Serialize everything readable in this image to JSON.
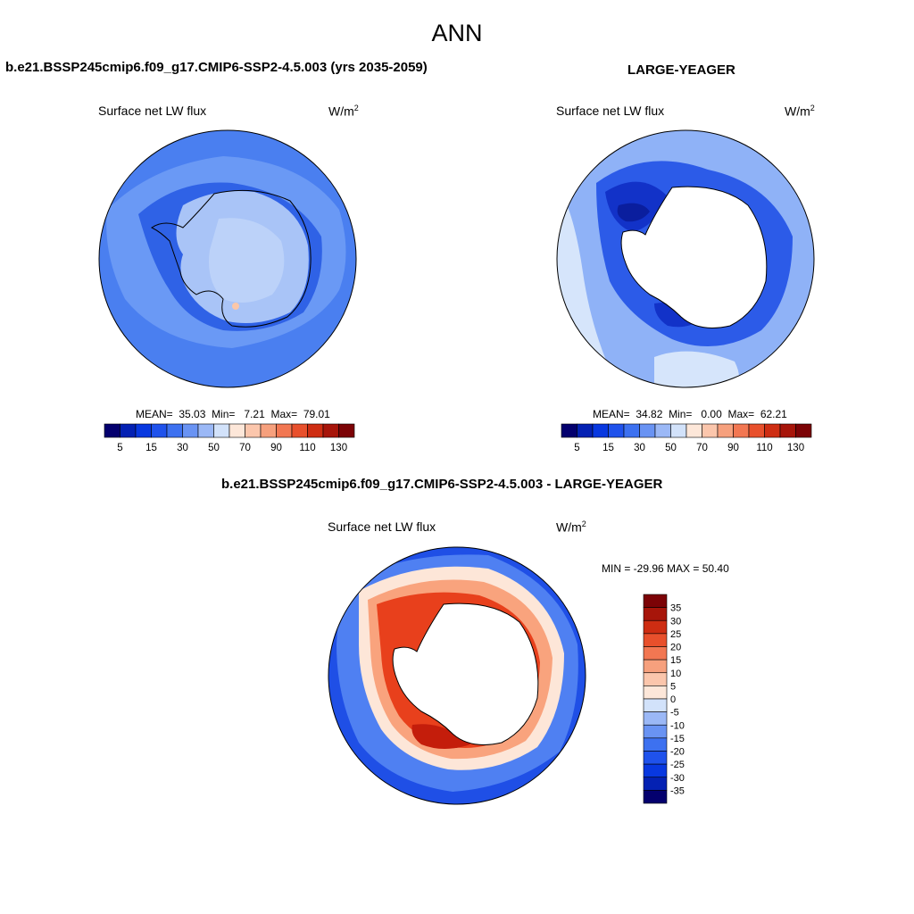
{
  "figure": {
    "title": "ANN",
    "colors": {
      "land": "#ffffff",
      "coast": "#000000",
      "outline": "#000000"
    }
  },
  "panels": [
    {
      "id": "model",
      "title": "b.e21.BSSP245cmip6.f09_g17.CMIP6-SSP2-4.5.003 (yrs 2035-2059)",
      "variable": "Surface net LW flux",
      "units_base": "W/m",
      "units_exp": "2",
      "stats": {
        "mean_label": "MEAN=",
        "mean": "35.03",
        "min_label": "Min=",
        "min": "7.21",
        "max_label": "Max=",
        "max": "79.01"
      },
      "field_colors": {
        "ocean": "#4a7ff0",
        "ocean_band": "#6a99f5",
        "ice_shelf": "#a9c4f7",
        "interior": "#bcd2f9",
        "coast_band": "#2f62e6",
        "warm_spot": "#fbc7a9"
      }
    },
    {
      "id": "obs",
      "title": "LARGE-YEAGER",
      "variable": "Surface net LW flux",
      "units_base": "W/m",
      "units_exp": "2",
      "stats": {
        "mean_label": "MEAN=",
        "mean": "34.82",
        "min_label": "Min=",
        "min": "0.00",
        "max_label": "Max=",
        "max": "62.21"
      },
      "field_colors": {
        "ocean": "#8fb2f7",
        "ocean_light": "#d6e5fb",
        "coast_band": "#2c5be8",
        "coast_dark": "#1232c8",
        "core": "#0a1e9e"
      }
    },
    {
      "id": "diff",
      "title": "b.e21.BSSP245cmip6.f09_g17.CMIP6-SSP2-4.5.003 - LARGE-YEAGER",
      "variable": "Surface net LW flux",
      "units_base": "W/m",
      "units_exp": "2",
      "minmax_label": "MIN = -29.96 MAX =  50.40",
      "field_colors": {
        "ocean": "#1f4fe6",
        "ocean_light": "#4f80f2",
        "rim": "#fde6d8",
        "rim_warm": "#f9a37d",
        "coast_band": "#e8401c",
        "coast_dark": "#c41d0b"
      }
    }
  ],
  "colorbars": {
    "absolute": {
      "colors": [
        "#04006e",
        "#0421b3",
        "#0838e0",
        "#1f52ec",
        "#3d71f0",
        "#6993f3",
        "#9bb8f6",
        "#d2e2fa",
        "#fde7d9",
        "#fbc6ac",
        "#f6a07d",
        "#f27752",
        "#e8502c",
        "#ce2d12",
        "#a7150a",
        "#7c0306"
      ],
      "tick_labels": [
        "5",
        "15",
        "30",
        "50",
        "70",
        "90",
        "110",
        "130"
      ]
    },
    "difference": {
      "colors": [
        "#7c0306",
        "#a7150a",
        "#ce2d12",
        "#e8502c",
        "#f27752",
        "#f6a07d",
        "#fbc6ac",
        "#fde7d9",
        "#d2e2fa",
        "#9bb8f6",
        "#6993f3",
        "#3d71f0",
        "#1f52ec",
        "#0838e0",
        "#0421b3",
        "#04006e"
      ],
      "tick_labels": [
        "35",
        "30",
        "25",
        "20",
        "15",
        "10",
        "5",
        "0",
        "-5",
        "-10",
        "-15",
        "-20",
        "-25",
        "-30",
        "-35"
      ]
    }
  }
}
